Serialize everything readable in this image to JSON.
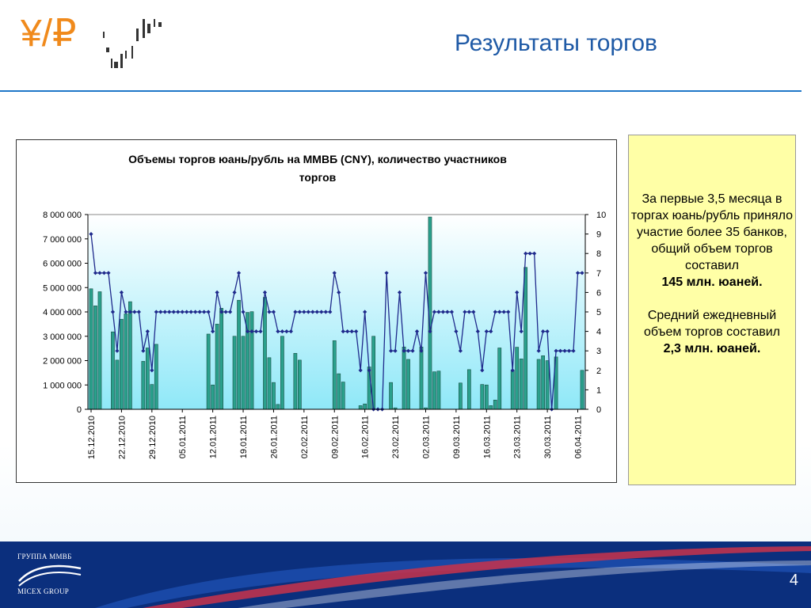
{
  "slide": {
    "title": "Результаты торгов",
    "page_number": "4",
    "logo_text": "¥/₽"
  },
  "note": {
    "line1": "За первые 3,5 месяца в торгах юань/рубль приняло участие более 35 банков, общий объем торгов составил",
    "highlight1": "145 млн. юаней.",
    "line2": "Средний ежедневный объем торгов составил",
    "highlight2": "2,3 млн. юаней."
  },
  "footer": {
    "brand_ru": "ГРУППА ММВБ",
    "brand_en": "MICEX GROUP"
  },
  "colors": {
    "title": "#1f5aa6",
    "bar_fill": "#2aa08c",
    "line": "#1f2a8c",
    "plot_bg_top": "#ffffff",
    "plot_bg_bottom": "#8fe8f8",
    "note_bg": "#ffffa6",
    "footer_bg": "#0b2f7d"
  },
  "chart_data": {
    "type": "bar",
    "title": "Объемы торгов юань/рубль на ММВБ (CNY), количество участников торгов",
    "y_left": {
      "min": 0,
      "max": 8000000,
      "step": 1000000,
      "tick_labels": [
        "0",
        "1 000 000",
        "2 000 000",
        "3 000 000",
        "4 000 000",
        "5 000 000",
        "6 000 000",
        "7 000 000",
        "8 000 000"
      ]
    },
    "y_right": {
      "min": 0,
      "max": 10,
      "step": 1,
      "tick_labels": [
        "0",
        "1",
        "2",
        "3",
        "4",
        "5",
        "6",
        "7",
        "8",
        "9",
        "10"
      ]
    },
    "x_tick_labels": [
      "15.12.2010",
      "22.12.2010",
      "29.12.2010",
      "05.01.2011",
      "12.01.2011",
      "19.01.2011",
      "26.01.2011",
      "02.02.2011",
      "09.02.2011",
      "16.02.2011",
      "23.02.2011",
      "02.03.2011",
      "09.03.2011",
      "16.03.2011",
      "23.03.2011",
      "30.03.2011",
      "06.04.2011"
    ],
    "days_span": 113,
    "series": [
      {
        "name": "Объем торгов",
        "kind": "bar",
        "points": [
          [
            0,
            4950000
          ],
          [
            1,
            4250000
          ],
          [
            2,
            4830000
          ],
          [
            5,
            3180000
          ],
          [
            6,
            2020000
          ],
          [
            7,
            3700000
          ],
          [
            8,
            3920000
          ],
          [
            9,
            4420000
          ],
          [
            12,
            1970000
          ],
          [
            13,
            2520000
          ],
          [
            14,
            1020000
          ],
          [
            15,
            2670000
          ],
          [
            27,
            3090000
          ],
          [
            28,
            1000000
          ],
          [
            29,
            3500000
          ],
          [
            30,
            4150000
          ],
          [
            33,
            3000000
          ],
          [
            34,
            4480000
          ],
          [
            35,
            3000000
          ],
          [
            36,
            3980000
          ],
          [
            37,
            4010000
          ],
          [
            40,
            4600000
          ],
          [
            41,
            2120000
          ],
          [
            42,
            1100000
          ],
          [
            43,
            200000
          ],
          [
            44,
            3000000
          ],
          [
            47,
            2300000
          ],
          [
            48,
            2020000
          ],
          [
            56,
            2820000
          ],
          [
            57,
            1460000
          ],
          [
            58,
            1120000
          ],
          [
            62,
            150000
          ],
          [
            63,
            220000
          ],
          [
            64,
            1740000
          ],
          [
            65,
            3000000
          ],
          [
            69,
            1100000
          ],
          [
            70,
            60000
          ],
          [
            72,
            2560000
          ],
          [
            73,
            2050000
          ],
          [
            76,
            2560000
          ],
          [
            77,
            60000
          ],
          [
            78,
            7900000
          ],
          [
            79,
            1540000
          ],
          [
            80,
            1570000
          ],
          [
            85,
            1080000
          ],
          [
            87,
            1630000
          ],
          [
            90,
            1020000
          ],
          [
            91,
            1000000
          ],
          [
            92,
            150000
          ],
          [
            93,
            380000
          ],
          [
            94,
            2520000
          ],
          [
            97,
            1600000
          ],
          [
            98,
            2550000
          ],
          [
            99,
            2070000
          ],
          [
            100,
            5830000
          ],
          [
            103,
            2050000
          ],
          [
            104,
            2200000
          ],
          [
            105,
            2000000
          ],
          [
            107,
            2150000
          ],
          [
            113,
            1600000
          ]
        ]
      },
      {
        "name": "Количество участников",
        "kind": "line",
        "axis": "right",
        "points": [
          [
            0,
            9
          ],
          [
            1,
            7
          ],
          [
            2,
            7
          ],
          [
            3,
            7
          ],
          [
            4,
            7
          ],
          [
            5,
            5
          ],
          [
            6,
            3
          ],
          [
            7,
            6
          ],
          [
            8,
            5
          ],
          [
            9,
            5
          ],
          [
            10,
            5
          ],
          [
            11,
            5
          ],
          [
            12,
            3
          ],
          [
            13,
            4
          ],
          [
            14,
            2
          ],
          [
            15,
            5
          ],
          [
            16,
            5
          ],
          [
            17,
            5
          ],
          [
            18,
            5
          ],
          [
            19,
            5
          ],
          [
            20,
            5
          ],
          [
            21,
            5
          ],
          [
            22,
            5
          ],
          [
            23,
            5
          ],
          [
            24,
            5
          ],
          [
            25,
            5
          ],
          [
            26,
            5
          ],
          [
            27,
            5
          ],
          [
            28,
            4
          ],
          [
            29,
            6
          ],
          [
            30,
            5
          ],
          [
            31,
            5
          ],
          [
            32,
            5
          ],
          [
            33,
            6
          ],
          [
            34,
            7
          ],
          [
            35,
            5
          ],
          [
            36,
            4
          ],
          [
            37,
            4
          ],
          [
            38,
            4
          ],
          [
            39,
            4
          ],
          [
            40,
            6
          ],
          [
            41,
            5
          ],
          [
            42,
            5
          ],
          [
            43,
            4
          ],
          [
            44,
            4
          ],
          [
            45,
            4
          ],
          [
            46,
            4
          ],
          [
            47,
            5
          ],
          [
            48,
            5
          ],
          [
            49,
            5
          ],
          [
            50,
            5
          ],
          [
            51,
            5
          ],
          [
            52,
            5
          ],
          [
            53,
            5
          ],
          [
            54,
            5
          ],
          [
            55,
            5
          ],
          [
            56,
            7
          ],
          [
            57,
            6
          ],
          [
            58,
            4
          ],
          [
            59,
            4
          ],
          [
            60,
            4
          ],
          [
            61,
            4
          ],
          [
            62,
            2
          ],
          [
            63,
            5
          ],
          [
            64,
            2
          ],
          [
            65,
            0
          ],
          [
            66,
            0
          ],
          [
            67,
            0
          ],
          [
            68,
            7
          ],
          [
            69,
            3
          ],
          [
            70,
            3
          ],
          [
            71,
            6
          ],
          [
            72,
            3
          ],
          [
            73,
            3
          ],
          [
            74,
            3
          ],
          [
            75,
            4
          ],
          [
            76,
            3
          ],
          [
            77,
            7
          ],
          [
            78,
            4
          ],
          [
            79,
            5
          ],
          [
            80,
            5
          ],
          [
            81,
            5
          ],
          [
            82,
            5
          ],
          [
            83,
            5
          ],
          [
            84,
            4
          ],
          [
            85,
            3
          ],
          [
            86,
            5
          ],
          [
            87,
            5
          ],
          [
            88,
            5
          ],
          [
            89,
            4
          ],
          [
            90,
            2
          ],
          [
            91,
            4
          ],
          [
            92,
            4
          ],
          [
            93,
            5
          ],
          [
            94,
            5
          ],
          [
            95,
            5
          ],
          [
            96,
            5
          ],
          [
            97,
            2
          ],
          [
            98,
            6
          ],
          [
            99,
            4
          ],
          [
            100,
            8
          ],
          [
            101,
            8
          ],
          [
            102,
            8
          ],
          [
            103,
            3
          ],
          [
            104,
            4
          ],
          [
            105,
            4
          ],
          [
            106,
            0
          ],
          [
            107,
            3
          ],
          [
            108,
            3
          ],
          [
            109,
            3
          ],
          [
            110,
            3
          ],
          [
            111,
            3
          ],
          [
            112,
            7
          ],
          [
            113,
            7
          ]
        ]
      }
    ]
  }
}
